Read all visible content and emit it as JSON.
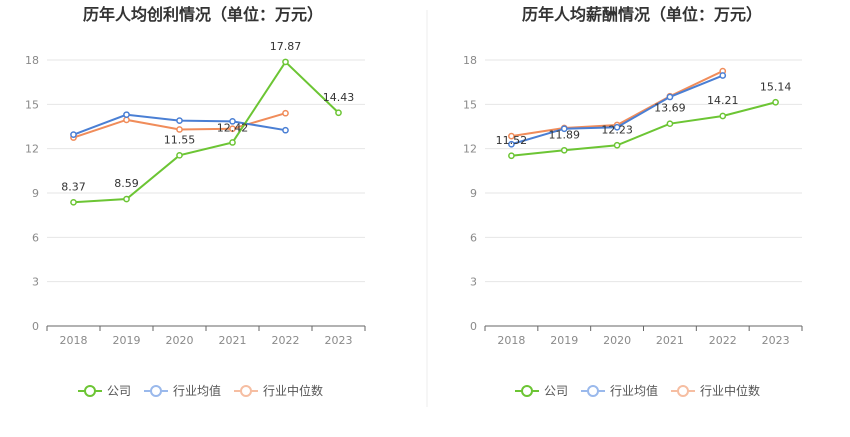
{
  "chart_data": [
    {
      "type": "line",
      "title": "历年人均创利情况（单位：万元）",
      "categories": [
        "2018",
        "2019",
        "2020",
        "2021",
        "2022",
        "2023"
      ],
      "ylim": [
        0,
        18
      ],
      "yticks": [
        0,
        3,
        6,
        9,
        12,
        15,
        18
      ],
      "grid": true,
      "legend_position": "bottom",
      "series": [
        {
          "name": "公司",
          "color": "#6cc534",
          "values": [
            8.37,
            8.59,
            11.55,
            12.42,
            17.87,
            14.43
          ],
          "labels": [
            "8.37",
            "8.59",
            "11.55",
            "12.42",
            "17.87",
            "14.43"
          ]
        },
        {
          "name": "行业均值",
          "color": "#4a7fd4",
          "values": [
            12.95,
            14.3,
            13.9,
            13.85,
            13.25,
            null
          ]
        },
        {
          "name": "行业中位数",
          "color": "#f08c5a",
          "values": [
            12.75,
            13.95,
            13.3,
            13.35,
            14.4,
            null
          ]
        }
      ]
    },
    {
      "type": "line",
      "title": "历年人均薪酬情况（单位：万元）",
      "categories": [
        "2018",
        "2019",
        "2020",
        "2021",
        "2022",
        "2023"
      ],
      "ylim": [
        0,
        18
      ],
      "yticks": [
        0,
        3,
        6,
        9,
        12,
        15,
        18
      ],
      "grid": true,
      "legend_position": "bottom",
      "series": [
        {
          "name": "公司",
          "color": "#6cc534",
          "values": [
            11.52,
            11.89,
            12.23,
            13.69,
            14.21,
            15.14
          ],
          "labels": [
            "11.52",
            "11.89",
            "12.23",
            "13.69",
            "14.21",
            "15.14"
          ]
        },
        {
          "name": "行业均值",
          "color": "#4a7fd4",
          "values": [
            12.3,
            13.35,
            13.45,
            15.5,
            16.95,
            null
          ]
        },
        {
          "name": "行业中位数",
          "color": "#f08c5a",
          "values": [
            12.85,
            13.4,
            13.6,
            15.55,
            17.25,
            null
          ]
        }
      ]
    }
  ]
}
